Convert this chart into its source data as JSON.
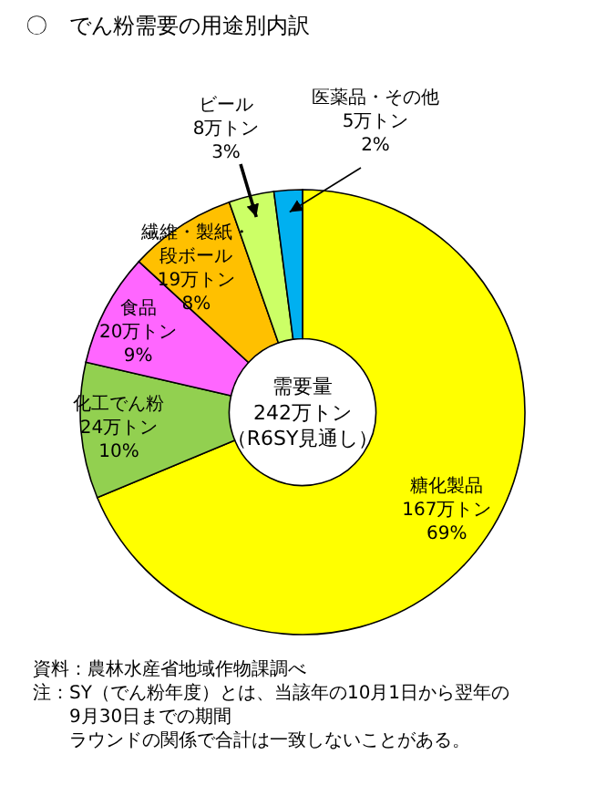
{
  "chart_data": {
    "type": "donut",
    "title": "〇　でん粉需要の用途別内訳",
    "categories": [
      "糖化製品",
      "化工でん粉",
      "食品",
      "繊維・製紙・段ボール",
      "ビール",
      "医薬品・その他"
    ],
    "values": [
      167,
      24,
      20,
      19,
      8,
      5
    ],
    "value_labels": [
      "167万トン\n69%",
      "24万トン\n10%",
      "20万トン\n9%",
      "19万トン\n8%",
      "8万トン\n3%",
      "5万トン\n2%"
    ],
    "colors": [
      "#ffff00",
      "#92d050",
      "#ff66ff",
      "#ffc000",
      "#ccff66",
      "#00b0f0"
    ],
    "annotations": [
      "需要量242万トン（R6SY見通し）",
      "資料：農林水産省地域作物課調べ",
      "注：SY（でん粉年度）とは、当該年の10月1日から翌年の9月30日までの期間",
      "ラウンドの関係で合計は一致しないことがある。"
    ]
  }
}
